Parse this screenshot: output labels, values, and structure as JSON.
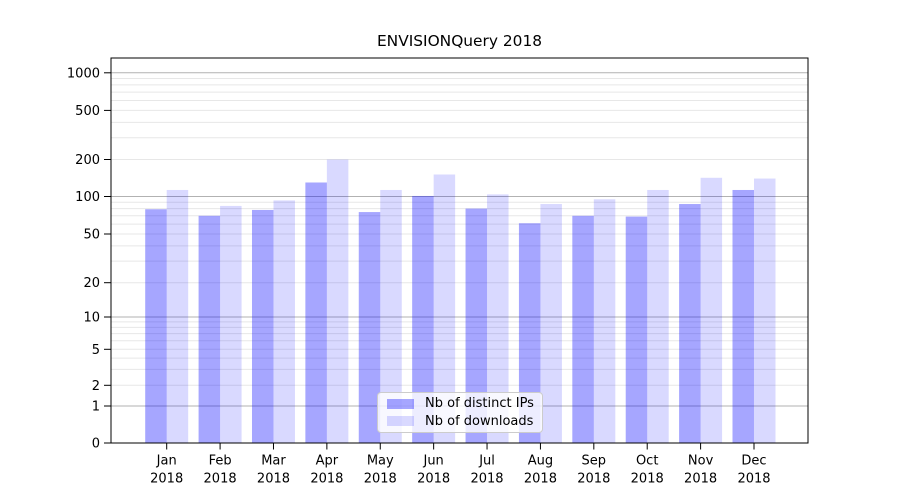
{
  "chart_data": {
    "type": "bar",
    "title": "ENVISIONQuery 2018",
    "categories": [
      "Jan 2018",
      "Feb 2018",
      "Mar 2018",
      "Apr 2018",
      "May 2018",
      "Jun 2018",
      "Jul 2018",
      "Aug 2018",
      "Sep 2018",
      "Oct 2018",
      "Nov 2018",
      "Dec 2018"
    ],
    "x_axis": {
      "months": [
        "Jan",
        "Feb",
        "Mar",
        "Apr",
        "May",
        "Jun",
        "Jul",
        "Aug",
        "Sep",
        "Oct",
        "Nov",
        "Dec"
      ],
      "year": "2018"
    },
    "y_axis": {
      "scale": "symlog",
      "ticks": [
        0,
        1,
        2,
        5,
        10,
        20,
        50,
        100,
        200,
        500,
        1000
      ],
      "ylim": [
        0,
        1330
      ],
      "grid": "major+minor"
    },
    "series": [
      {
        "key": "distinct-ips",
        "name": "Nb of distinct IPs",
        "color": "rgba(0,0,255,0.35)",
        "values": [
          79,
          70,
          78,
          130,
          75,
          101,
          80,
          61,
          70,
          69,
          87,
          113
        ]
      },
      {
        "key": "downloads",
        "name": "Nb of downloads",
        "color": "rgba(0,0,255,0.15)",
        "values": [
          113,
          84,
          93,
          200,
          113,
          151,
          104,
          87,
          95,
          113,
          142,
          140
        ]
      }
    ],
    "legend": {
      "position": "lower center"
    },
    "colors": {
      "grid_major": "#b2b2b2",
      "grid_minor": "#e7e7e7",
      "axis": "#000000",
      "text": "#000000",
      "background": "#ffffff"
    }
  }
}
